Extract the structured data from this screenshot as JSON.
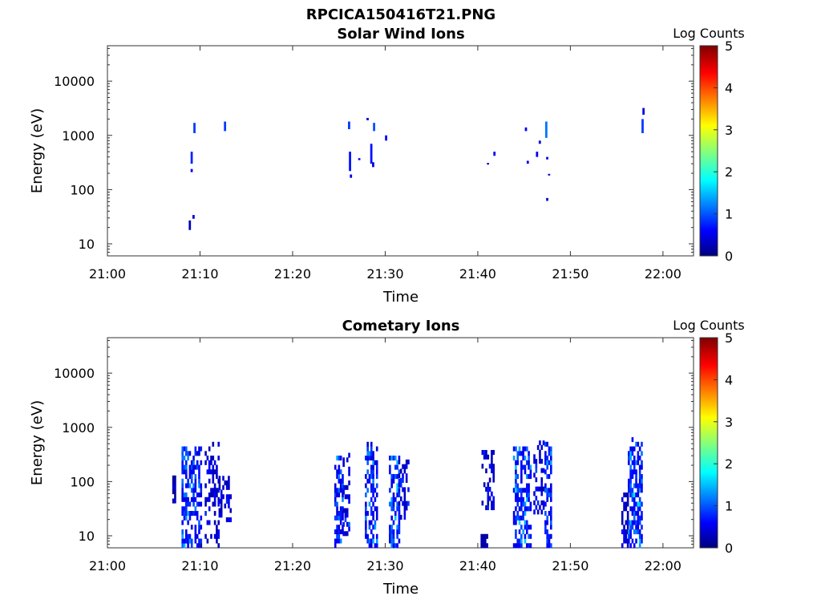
{
  "figure": {
    "title": "RPCICA150416T21.PNG"
  },
  "chart_data": [
    {
      "type": "heatmap",
      "title": "Solar Wind Ions",
      "xlabel": "Time",
      "ylabel": "Energy (eV)",
      "x_ticks": [
        "21:00",
        "21:10",
        "21:20",
        "21:30",
        "21:40",
        "21:50",
        "22:00"
      ],
      "x_tick_minutes": [
        0,
        10,
        20,
        30,
        40,
        50,
        60
      ],
      "xlim_minutes": [
        0,
        63.3
      ],
      "y_scale": "log",
      "y_ticks": [
        "10",
        "100",
        "1000",
        "10000"
      ],
      "y_tick_values": [
        10,
        100,
        1000,
        10000
      ],
      "ylim": [
        6,
        45000
      ],
      "colorbar": {
        "label": "Log Counts",
        "ticks": [
          "0",
          "1",
          "2",
          "3",
          "4",
          "5"
        ],
        "range": [
          0,
          5
        ],
        "colormap": "jet"
      },
      "cells": [
        {
          "t": 8.9,
          "e0": 18,
          "e1": 27,
          "v": 0.3
        },
        {
          "t": 9.3,
          "e0": 29,
          "e1": 34,
          "v": 0.4
        },
        {
          "t": 9.1,
          "e0": 300,
          "e1": 500,
          "v": 0.8
        },
        {
          "t": 9.1,
          "e0": 210,
          "e1": 240,
          "v": 0.6
        },
        {
          "t": 9.4,
          "e0": 1100,
          "e1": 1700,
          "v": 0.9
        },
        {
          "t": 12.7,
          "e0": 1200,
          "e1": 1800,
          "v": 0.9
        },
        {
          "t": 26.1,
          "e0": 1300,
          "e1": 1800,
          "v": 0.9
        },
        {
          "t": 26.2,
          "e0": 220,
          "e1": 500,
          "v": 0.7
        },
        {
          "t": 26.3,
          "e0": 165,
          "e1": 190,
          "v": 0.5
        },
        {
          "t": 27.2,
          "e0": 350,
          "e1": 380,
          "v": 0.5
        },
        {
          "t": 28.1,
          "e0": 1900,
          "e1": 2100,
          "v": 0.4
        },
        {
          "t": 28.5,
          "e0": 300,
          "e1": 700,
          "v": 0.7
        },
        {
          "t": 28.8,
          "e0": 1200,
          "e1": 1700,
          "v": 1.0
        },
        {
          "t": 28.7,
          "e0": 260,
          "e1": 320,
          "v": 0.5
        },
        {
          "t": 30.1,
          "e0": 800,
          "e1": 1000,
          "v": 0.6
        },
        {
          "t": 41.1,
          "e0": 290,
          "e1": 310,
          "v": 0.4
        },
        {
          "t": 41.8,
          "e0": 420,
          "e1": 500,
          "v": 0.6
        },
        {
          "t": 45.2,
          "e0": 1200,
          "e1": 1400,
          "v": 0.6
        },
        {
          "t": 45.4,
          "e0": 300,
          "e1": 340,
          "v": 0.5
        },
        {
          "t": 46.4,
          "e0": 400,
          "e1": 500,
          "v": 0.6
        },
        {
          "t": 46.7,
          "e0": 700,
          "e1": 800,
          "v": 0.5
        },
        {
          "t": 47.4,
          "e0": 900,
          "e1": 1800,
          "v": 1.2
        },
        {
          "t": 47.5,
          "e0": 360,
          "e1": 400,
          "v": 0.5
        },
        {
          "t": 47.5,
          "e0": 62,
          "e1": 70,
          "v": 0.4
        },
        {
          "t": 47.7,
          "e0": 185,
          "e1": 195,
          "v": 0.4
        },
        {
          "t": 57.8,
          "e0": 1100,
          "e1": 2000,
          "v": 0.9
        },
        {
          "t": 57.9,
          "e0": 2400,
          "e1": 3200,
          "v": 0.5
        }
      ]
    },
    {
      "type": "heatmap",
      "title": "Cometary Ions",
      "xlabel": "Time",
      "ylabel": "Energy (eV)",
      "x_ticks": [
        "21:00",
        "21:10",
        "21:20",
        "21:30",
        "21:40",
        "21:50",
        "22:00"
      ],
      "x_tick_minutes": [
        0,
        10,
        20,
        30,
        40,
        50,
        60
      ],
      "xlim_minutes": [
        0,
        63.3
      ],
      "y_scale": "log",
      "y_ticks": [
        "10",
        "100",
        "1000",
        "10000"
      ],
      "y_tick_values": [
        10,
        100,
        1000,
        10000
      ],
      "ylim": [
        6,
        45000
      ],
      "colorbar": {
        "label": "Log Counts",
        "ticks": [
          "0",
          "1",
          "2",
          "3",
          "4",
          "5"
        ],
        "range": [
          0,
          5
        ],
        "colormap": "jet"
      },
      "bursts": [
        {
          "t0": 7.0,
          "t1": 7.3,
          "emin": 40,
          "emax": 110,
          "vmax": 0.5,
          "density": 0.9
        },
        {
          "t0": 8.0,
          "t1": 10.0,
          "emin": 6,
          "emax": 420,
          "vmax": 1.8,
          "density": 0.55
        },
        {
          "t0": 10.5,
          "t1": 12.0,
          "emin": 6,
          "emax": 460,
          "vmax": 0.9,
          "density": 0.35
        },
        {
          "t0": 12.0,
          "t1": 13.3,
          "emin": 18,
          "emax": 110,
          "vmax": 1.0,
          "density": 0.55
        },
        {
          "t0": 24.5,
          "t1": 25.4,
          "emin": 6,
          "emax": 300,
          "vmax": 1.6,
          "density": 0.55
        },
        {
          "t0": 25.4,
          "t1": 26.0,
          "emin": 10,
          "emax": 280,
          "vmax": 1.2,
          "density": 0.35
        },
        {
          "t0": 27.8,
          "t1": 29.0,
          "emin": 6,
          "emax": 520,
          "vmax": 1.7,
          "density": 0.55
        },
        {
          "t0": 30.4,
          "t1": 31.4,
          "emin": 6,
          "emax": 300,
          "vmax": 1.9,
          "density": 0.55
        },
        {
          "t0": 31.4,
          "t1": 32.5,
          "emin": 20,
          "emax": 230,
          "vmax": 1.1,
          "density": 0.45
        },
        {
          "t0": 40.3,
          "t1": 41.0,
          "emin": 6,
          "emax": 9,
          "vmax": 0.5,
          "density": 0.7
        },
        {
          "t0": 40.4,
          "t1": 41.8,
          "emin": 30,
          "emax": 400,
          "vmax": 1.0,
          "density": 0.4
        },
        {
          "t0": 43.8,
          "t1": 45.8,
          "emin": 6,
          "emax": 400,
          "vmax": 1.8,
          "density": 0.6
        },
        {
          "t0": 46.0,
          "t1": 47.2,
          "emin": 25,
          "emax": 560,
          "vmax": 1.1,
          "density": 0.4
        },
        {
          "t0": 47.2,
          "t1": 48.0,
          "emin": 6,
          "emax": 540,
          "vmax": 1.9,
          "density": 0.55
        },
        {
          "t0": 55.5,
          "t1": 56.2,
          "emin": 6,
          "emax": 60,
          "vmax": 0.8,
          "density": 0.5
        },
        {
          "t0": 56.2,
          "t1": 57.8,
          "emin": 6,
          "emax": 620,
          "vmax": 1.9,
          "density": 0.65
        }
      ]
    }
  ]
}
